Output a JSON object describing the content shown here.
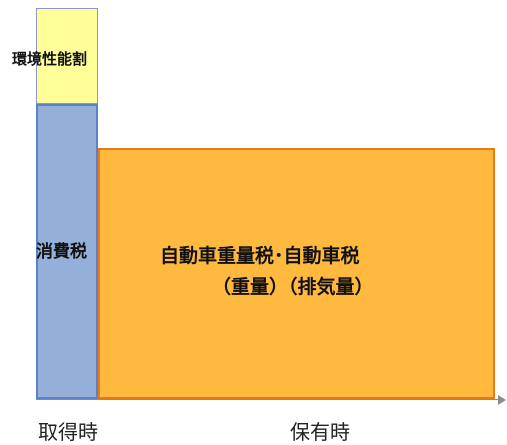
{
  "boxes": {
    "env": {
      "label": "環境性能割",
      "fill": "#fffe99"
    },
    "consumption": {
      "label": "消費税",
      "fill": "#94b0d9"
    },
    "weight": {
      "label_line1": "自動車重量税･自動車税",
      "label_line2": "（重量）（排気量）",
      "fill": "#ffb93e"
    }
  },
  "axis": {
    "acquire": "取得時",
    "hold": "保有時",
    "color": "#8c8c8c"
  }
}
